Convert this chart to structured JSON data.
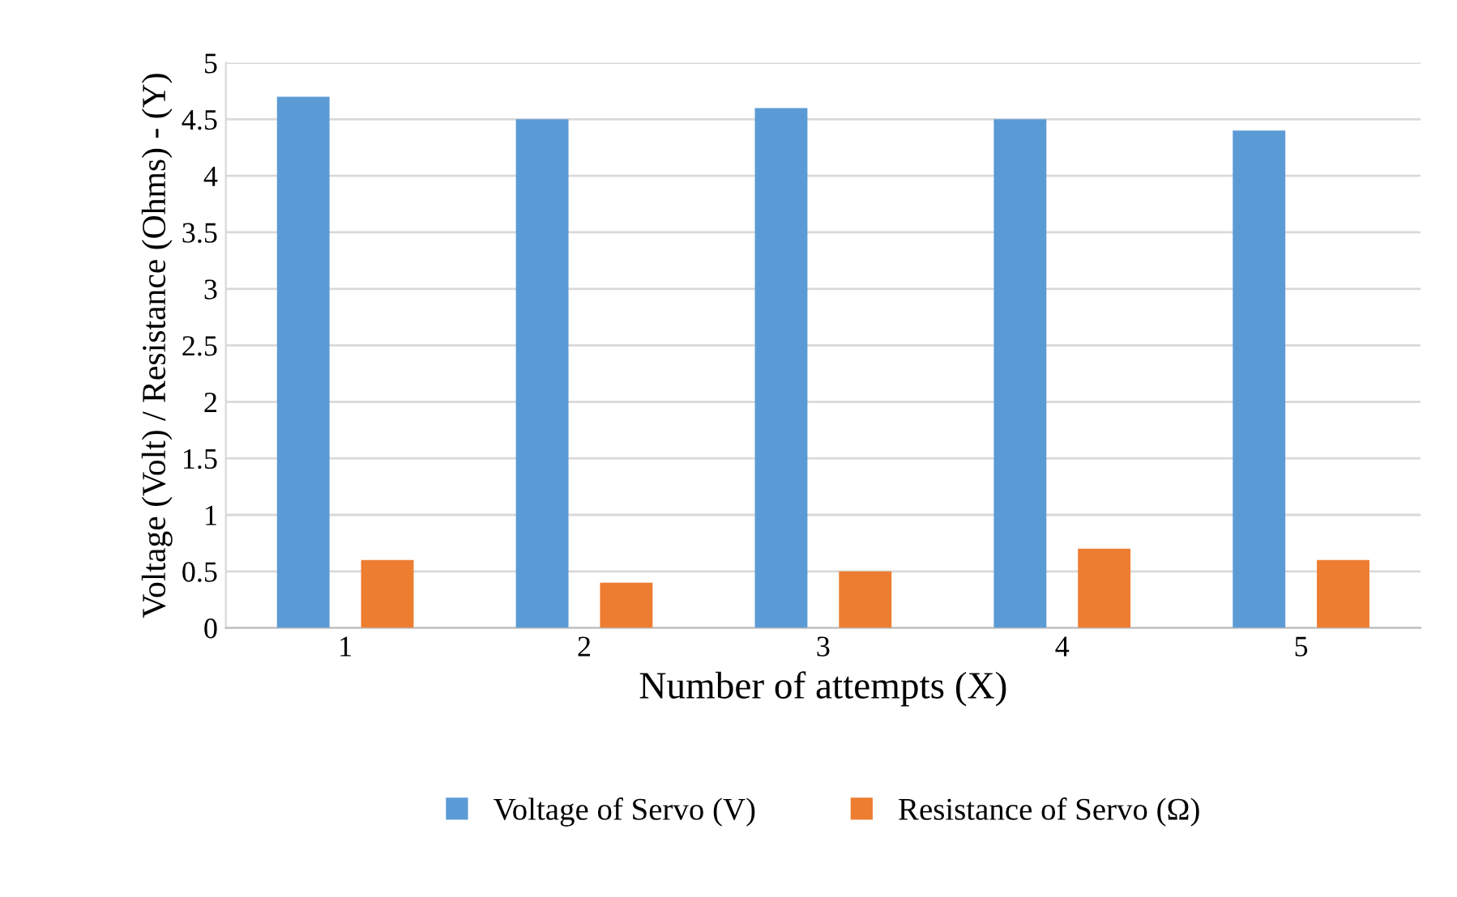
{
  "chart_data": {
    "type": "bar",
    "xlabel": "Number of attempts (X)",
    "ylabel": "Voltage (Volt) / Resistance (Ohms) - (Y)",
    "categories": [
      "1",
      "2",
      "3",
      "4",
      "5"
    ],
    "series": [
      {
        "name": "Voltage of Servo (V)",
        "color": "#5b9bd5",
        "values": [
          4.7,
          4.5,
          4.6,
          4.5,
          4.4
        ]
      },
      {
        "name": "Resistance of Servo (Ω)",
        "color": "#ed7d31",
        "values": [
          0.6,
          0.4,
          0.5,
          0.7,
          0.6
        ]
      }
    ],
    "ylim": [
      0,
      5
    ],
    "yticks": [
      0,
      0.5,
      1,
      1.5,
      2,
      2.5,
      3,
      3.5,
      4,
      4.5,
      5
    ],
    "grid": "y",
    "legend": "bottom"
  }
}
